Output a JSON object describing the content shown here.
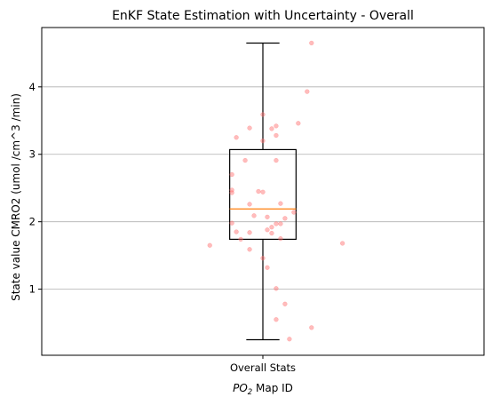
{
  "chart_data": {
    "type": "box",
    "title": "EnKF State Estimation with Uncertainty - Overall",
    "xlabel_prefix": "PO",
    "xlabel_sub": "2",
    "xlabel_suffix": " Map ID",
    "ylabel": "State value CMRO2 (umol /cm^3 /min)",
    "categories": [
      "Overall Stats"
    ],
    "ylim": [
      0.02,
      4.88
    ],
    "yticks": [
      1,
      2,
      3,
      4
    ],
    "grid": "y",
    "box": {
      "whisker_low": 0.25,
      "q1": 1.74,
      "median": 2.19,
      "q3": 3.07,
      "whisker_high": 4.65
    },
    "points": [
      {
        "x": 0.88,
        "y": 1.65
      },
      {
        "x": 1.18,
        "y": 1.68
      },
      {
        "x": 1.11,
        "y": 4.65
      },
      {
        "x": 1.1,
        "y": 3.93
      },
      {
        "x": 1.08,
        "y": 3.46
      },
      {
        "x": 1.11,
        "y": 0.43
      },
      {
        "x": 1.06,
        "y": 0.26
      },
      {
        "x": 1.05,
        "y": 0.78
      },
      {
        "x": 1.03,
        "y": 1.01
      },
      {
        "x": 1.03,
        "y": 0.55
      },
      {
        "x": 1.01,
        "y": 1.32
      },
      {
        "x": 1.0,
        "y": 1.46
      },
      {
        "x": 1.0,
        "y": 3.59
      },
      {
        "x": 1.02,
        "y": 3.38
      },
      {
        "x": 1.03,
        "y": 3.42
      },
      {
        "x": 1.03,
        "y": 3.28
      },
      {
        "x": 1.0,
        "y": 3.2
      },
      {
        "x": 0.94,
        "y": 3.25
      },
      {
        "x": 0.97,
        "y": 3.39
      },
      {
        "x": 0.96,
        "y": 2.91
      },
      {
        "x": 1.03,
        "y": 2.91
      },
      {
        "x": 0.93,
        "y": 2.7
      },
      {
        "x": 0.93,
        "y": 2.47
      },
      {
        "x": 0.93,
        "y": 2.43
      },
      {
        "x": 0.99,
        "y": 2.45
      },
      {
        "x": 1.0,
        "y": 2.44
      },
      {
        "x": 0.97,
        "y": 2.26
      },
      {
        "x": 1.04,
        "y": 2.27
      },
      {
        "x": 1.07,
        "y": 2.14
      },
      {
        "x": 0.98,
        "y": 2.09
      },
      {
        "x": 1.01,
        "y": 2.07
      },
      {
        "x": 1.05,
        "y": 2.05
      },
      {
        "x": 1.04,
        "y": 1.97
      },
      {
        "x": 1.02,
        "y": 1.92
      },
      {
        "x": 1.01,
        "y": 1.88
      },
      {
        "x": 1.02,
        "y": 1.83
      },
      {
        "x": 0.93,
        "y": 1.98
      },
      {
        "x": 0.94,
        "y": 1.85
      },
      {
        "x": 0.97,
        "y": 1.84
      },
      {
        "x": 1.04,
        "y": 1.75
      },
      {
        "x": 0.95,
        "y": 1.74
      },
      {
        "x": 0.97,
        "y": 1.59
      },
      {
        "x": 1.03,
        "y": 1.97
      }
    ],
    "colors": {
      "box": "#000000",
      "median": "#ff7f0e",
      "points": "#ff6b6b",
      "grid": "#b0b0b0"
    }
  }
}
